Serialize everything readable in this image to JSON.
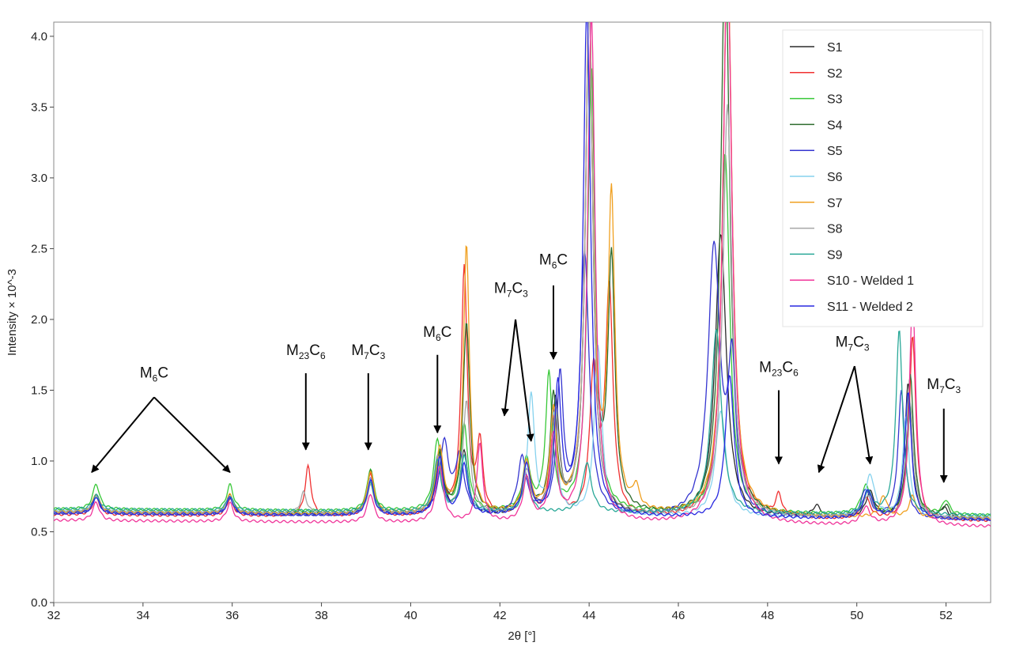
{
  "chart_data": {
    "type": "line",
    "title": "",
    "xlabel": "2θ [°]",
    "ylabel": "Intensity × 10^-3",
    "xlim": [
      32,
      53
    ],
    "ylim": [
      0,
      4.1
    ],
    "xticks": [
      32,
      34,
      36,
      38,
      40,
      42,
      44,
      46,
      48,
      50,
      52
    ],
    "yticks": [
      "0.0",
      "0.5",
      "1.0",
      "1.5",
      "2.0",
      "2.5",
      "3.0",
      "3.5",
      "4.0"
    ],
    "grid": false,
    "legend_position": "top-right",
    "series": [
      {
        "name": "S1",
        "color": "#2b2b2b",
        "baseline": 0.63,
        "peaks": [
          [
            32.95,
            0.13,
            0.09
          ],
          [
            35.95,
            0.13,
            0.09
          ],
          [
            39.1,
            0.3,
            0.09
          ],
          [
            40.65,
            0.45,
            0.1
          ],
          [
            41.2,
            0.45,
            0.1
          ],
          [
            42.6,
            0.35,
            0.1
          ],
          [
            43.25,
            0.8,
            0.09
          ],
          [
            44.0,
            3.6,
            0.1
          ],
          [
            46.95,
            2.0,
            0.15
          ],
          [
            49.1,
            0.08,
            0.12
          ],
          [
            50.3,
            0.18,
            0.12
          ],
          [
            51.15,
            0.95,
            0.09
          ],
          [
            51.95,
            0.08,
            0.09
          ]
        ]
      },
      {
        "name": "S2",
        "color": "#f03030",
        "baseline": 0.62,
        "peaks": [
          [
            32.95,
            0.13,
            0.09
          ],
          [
            35.95,
            0.12,
            0.09
          ],
          [
            37.7,
            0.35,
            0.08
          ],
          [
            39.1,
            0.3,
            0.09
          ],
          [
            40.65,
            0.4,
            0.1
          ],
          [
            41.2,
            1.75,
            0.08
          ],
          [
            41.55,
            0.5,
            0.08
          ],
          [
            42.6,
            0.35,
            0.1
          ],
          [
            43.2,
            0.7,
            0.09
          ],
          [
            44.1,
            1.0,
            0.1
          ],
          [
            44.45,
            1.6,
            0.1
          ],
          [
            47.1,
            4.0,
            0.12
          ],
          [
            48.25,
            0.15,
            0.08
          ],
          [
            50.2,
            0.15,
            0.12
          ],
          [
            51.25,
            1.3,
            0.09
          ]
        ]
      },
      {
        "name": "S3",
        "color": "#38c838",
        "baseline": 0.66,
        "peaks": [
          [
            32.95,
            0.18,
            0.09
          ],
          [
            35.95,
            0.18,
            0.09
          ],
          [
            39.1,
            0.3,
            0.09
          ],
          [
            40.6,
            0.5,
            0.1
          ],
          [
            41.2,
            0.6,
            0.1
          ],
          [
            42.6,
            0.35,
            0.1
          ],
          [
            43.1,
            0.95,
            0.09
          ],
          [
            44.05,
            3.15,
            0.1
          ],
          [
            47.05,
            2.55,
            0.12
          ],
          [
            50.2,
            0.2,
            0.12
          ],
          [
            51.2,
            0.75,
            0.09
          ],
          [
            52.0,
            0.1,
            0.09
          ]
        ]
      },
      {
        "name": "S4",
        "color": "#2e6b2e",
        "baseline": 0.64,
        "peaks": [
          [
            32.95,
            0.13,
            0.09
          ],
          [
            35.95,
            0.13,
            0.09
          ],
          [
            39.1,
            0.3,
            0.09
          ],
          [
            40.65,
            0.4,
            0.1
          ],
          [
            41.25,
            1.35,
            0.09
          ],
          [
            42.6,
            0.35,
            0.1
          ],
          [
            43.2,
            0.8,
            0.09
          ],
          [
            44.0,
            3.6,
            0.1
          ],
          [
            44.5,
            1.75,
            0.09
          ],
          [
            47.05,
            4.0,
            0.12
          ],
          [
            50.25,
            0.18,
            0.12
          ],
          [
            51.2,
            1.0,
            0.09
          ],
          [
            52.0,
            0.08,
            0.09
          ]
        ]
      },
      {
        "name": "S5",
        "color": "#3535d0",
        "baseline": 0.63,
        "peaks": [
          [
            32.95,
            0.12,
            0.09
          ],
          [
            35.95,
            0.12,
            0.09
          ],
          [
            39.1,
            0.25,
            0.09
          ],
          [
            40.75,
            0.5,
            0.12
          ],
          [
            41.1,
            0.4,
            0.12
          ],
          [
            42.5,
            0.4,
            0.12
          ],
          [
            43.35,
            0.95,
            0.09
          ],
          [
            43.9,
            1.85,
            0.12
          ],
          [
            46.8,
            1.9,
            0.16
          ],
          [
            47.2,
            1.0,
            0.1
          ],
          [
            50.2,
            0.2,
            0.12
          ],
          [
            51.0,
            0.9,
            0.09
          ]
        ]
      },
      {
        "name": "S6",
        "color": "#86d2ee",
        "baseline": 0.64,
        "peaks": [
          [
            32.95,
            0.12,
            0.09
          ],
          [
            35.95,
            0.12,
            0.09
          ],
          [
            39.1,
            0.25,
            0.09
          ],
          [
            40.6,
            0.4,
            0.1
          ],
          [
            41.2,
            0.4,
            0.1
          ],
          [
            42.7,
            0.85,
            0.09
          ],
          [
            43.2,
            0.7,
            0.09
          ],
          [
            44.2,
            1.2,
            0.1
          ],
          [
            46.95,
            0.75,
            0.14
          ],
          [
            50.3,
            0.3,
            0.12
          ],
          [
            51.1,
            0.7,
            0.09
          ]
        ]
      },
      {
        "name": "S7",
        "color": "#f0a020",
        "baseline": 0.64,
        "peaks": [
          [
            32.95,
            0.13,
            0.09
          ],
          [
            35.95,
            0.13,
            0.09
          ],
          [
            39.1,
            0.3,
            0.09
          ],
          [
            40.65,
            0.45,
            0.1
          ],
          [
            41.25,
            1.9,
            0.08
          ],
          [
            42.6,
            0.35,
            0.1
          ],
          [
            43.2,
            0.7,
            0.09
          ],
          [
            44.0,
            3.6,
            0.1
          ],
          [
            44.5,
            2.2,
            0.09
          ],
          [
            45.05,
            0.15,
            0.08
          ],
          [
            47.1,
            4.0,
            0.12
          ],
          [
            50.6,
            0.15,
            0.1
          ],
          [
            51.25,
            0.15,
            0.09
          ]
        ]
      },
      {
        "name": "S8",
        "color": "#a6a6a6",
        "baseline": 0.64,
        "peaks": [
          [
            32.95,
            0.12,
            0.09
          ],
          [
            35.95,
            0.12,
            0.09
          ],
          [
            37.6,
            0.15,
            0.08
          ],
          [
            39.1,
            0.2,
            0.09
          ],
          [
            40.6,
            0.4,
            0.1
          ],
          [
            41.25,
            0.8,
            0.09
          ],
          [
            42.6,
            0.3,
            0.1
          ],
          [
            43.25,
            0.7,
            0.09
          ],
          [
            44.0,
            3.6,
            0.1
          ],
          [
            47.1,
            2.9,
            0.12
          ],
          [
            50.25,
            0.15,
            0.12
          ],
          [
            51.2,
            0.8,
            0.09
          ]
        ]
      },
      {
        "name": "S9",
        "color": "#2aa898",
        "baseline": 0.66,
        "peaks": [
          [
            32.95,
            0.1,
            0.09
          ],
          [
            35.95,
            0.1,
            0.09
          ],
          [
            39.1,
            0.2,
            0.09
          ],
          [
            40.6,
            0.35,
            0.1
          ],
          [
            41.2,
            0.4,
            0.1
          ],
          [
            42.6,
            0.25,
            0.1
          ],
          [
            43.95,
            0.35,
            0.12
          ],
          [
            46.85,
            1.3,
            0.14
          ],
          [
            50.25,
            0.15,
            0.12
          ],
          [
            50.95,
            1.3,
            0.09
          ]
        ]
      },
      {
        "name": "S10 - Welded 1",
        "color": "#f0359a",
        "baseline": 0.58,
        "peaks": [
          [
            32.95,
            0.13,
            0.09
          ],
          [
            35.95,
            0.13,
            0.09
          ],
          [
            39.1,
            0.2,
            0.09
          ],
          [
            40.65,
            0.4,
            0.1
          ],
          [
            41.55,
            0.55,
            0.08
          ],
          [
            42.6,
            0.3,
            0.1
          ],
          [
            43.2,
            0.6,
            0.09
          ],
          [
            44.05,
            3.6,
            0.1
          ],
          [
            47.1,
            4.0,
            0.12
          ],
          [
            50.2,
            0.12,
            0.12
          ],
          [
            51.25,
            1.6,
            0.09
          ]
        ]
      },
      {
        "name": "S11 - Welded 2",
        "color": "#2828e0",
        "baseline": 0.63,
        "peaks": [
          [
            32.95,
            0.12,
            0.09
          ],
          [
            35.95,
            0.12,
            0.09
          ],
          [
            39.1,
            0.25,
            0.09
          ],
          [
            40.65,
            0.4,
            0.1
          ],
          [
            41.2,
            0.35,
            0.1
          ],
          [
            42.6,
            0.35,
            0.1
          ],
          [
            43.3,
            0.9,
            0.09
          ],
          [
            43.95,
            3.6,
            0.1
          ],
          [
            47.15,
            1.0,
            0.12
          ],
          [
            50.25,
            0.2,
            0.12
          ],
          [
            51.15,
            0.9,
            0.09
          ]
        ]
      }
    ],
    "annotations": [
      {
        "pre": "M",
        "sub1": "6",
        "mid": "C",
        "sub2": "",
        "label_x": 34.25,
        "label_y": 1.56,
        "arrows": [
          [
            32.85,
            0.92
          ],
          [
            35.95,
            0.92
          ]
        ],
        "stems": [
          [
            34.25,
            1.45
          ]
        ]
      },
      {
        "pre": "M",
        "sub1": "23",
        "mid": "C",
        "sub2": "6",
        "label_x": 37.65,
        "label_y": 1.72,
        "arrows": [
          [
            37.65,
            1.08
          ]
        ],
        "stems": [
          [
            37.65,
            1.62
          ]
        ]
      },
      {
        "pre": "M",
        "sub1": "7",
        "mid": "C",
        "sub2": "3",
        "label_x": 39.05,
        "label_y": 1.72,
        "arrows": [
          [
            39.05,
            1.08
          ]
        ],
        "stems": [
          [
            39.05,
            1.62
          ]
        ]
      },
      {
        "pre": "M",
        "sub1": "6",
        "mid": "C",
        "sub2": "",
        "label_x": 40.6,
        "label_y": 1.85,
        "arrows": [
          [
            40.6,
            1.2
          ]
        ],
        "stems": [
          [
            40.6,
            1.75
          ]
        ]
      },
      {
        "pre": "M",
        "sub1": "7",
        "mid": "C",
        "sub2": "3",
        "label_x": 42.25,
        "label_y": 2.16,
        "arrows": [
          [
            42.1,
            1.32
          ],
          [
            42.7,
            1.14
          ]
        ],
        "stems": [
          [
            42.35,
            2.0
          ]
        ]
      },
      {
        "pre": "M",
        "sub1": "6",
        "mid": "C",
        "sub2": "",
        "label_x": 43.2,
        "label_y": 2.36,
        "arrows": [
          [
            43.2,
            1.72
          ]
        ],
        "stems": [
          [
            43.2,
            2.24
          ]
        ]
      },
      {
        "pre": "M",
        "sub1": "23",
        "mid": "C",
        "sub2": "6",
        "label_x": 48.25,
        "label_y": 1.6,
        "arrows": [
          [
            48.25,
            0.98
          ]
        ],
        "stems": [
          [
            48.25,
            1.5
          ]
        ]
      },
      {
        "pre": "M",
        "sub1": "7",
        "mid": "C",
        "sub2": "3",
        "label_x": 49.9,
        "label_y": 1.78,
        "arrows": [
          [
            49.15,
            0.92
          ],
          [
            50.3,
            0.98
          ]
        ],
        "stems": [
          [
            49.95,
            1.67
          ]
        ]
      },
      {
        "pre": "M",
        "sub1": "7",
        "mid": "C",
        "sub2": "3",
        "label_x": 51.95,
        "label_y": 1.48,
        "arrows": [
          [
            51.95,
            0.85
          ]
        ],
        "stems": [
          [
            51.95,
            1.37
          ]
        ]
      }
    ]
  }
}
